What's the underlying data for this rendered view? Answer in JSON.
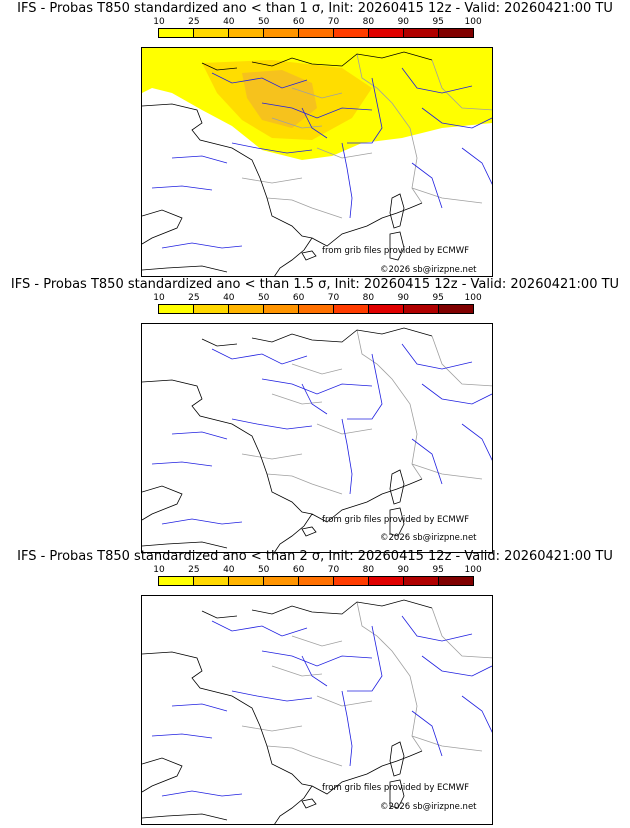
{
  "panels": [
    {
      "title": "IFS - Probas T850  standardized ano < than 1 σ, Init: 20260415 12z - Valid: 20260421:00 TU",
      "shaded": true,
      "source_text": "from grib files provided by ECMWF",
      "copyright_text": "©2026 sb@irizpne.net"
    },
    {
      "title": "IFS - Probas T850  standardized ano < than 1.5 σ, Init: 20260415 12z - Valid: 20260421:00 TU",
      "shaded": false,
      "source_text": "from grib files provided by ECMWF",
      "copyright_text": "©2026 sb@irizpne.net"
    },
    {
      "title": "IFS - Probas T850  standardized ano < than 2 σ, Init: 20260415 12z - Valid: 20260421:00 TU",
      "shaded": false,
      "source_text": "from grib files provided by ECMWF",
      "copyright_text": "©2026 sb@irizpne.net"
    }
  ],
  "legend": {
    "labels": [
      "10",
      "25",
      "40",
      "50",
      "60",
      "70",
      "80",
      "90",
      "95",
      "100"
    ],
    "colors": [
      "#ffff00",
      "#ffd800",
      "#ffb400",
      "#ff9400",
      "#ff7000",
      "#ff3c00",
      "#e00000",
      "#b00000",
      "#800000",
      "#500000"
    ]
  },
  "map_colors": {
    "coast": "#000000",
    "rivers": "#2020e0",
    "borders": "#a0a0a0",
    "prob_low": "#ffff00",
    "prob_mid": "#ffd400",
    "prob_high": "#f0b030"
  }
}
